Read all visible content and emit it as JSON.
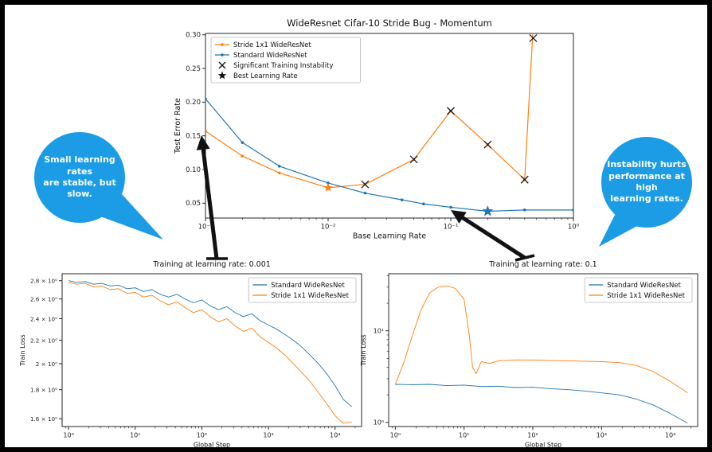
{
  "colors": {
    "orange": "#ff7f0e",
    "blue": "#1f77b4",
    "bubble_blue": "#1b9ce4",
    "annotation_black": "#111111"
  },
  "bubbles": {
    "left": {
      "text": "Small learning rates\nare stable, but slow."
    },
    "right": {
      "text": "Instability hurts\nperformance at high\nlearning rates."
    }
  },
  "chart_data": [
    {
      "type": "line",
      "title": "WideResnet Cifar-10 Stride Bug - Momentum",
      "xlabel": "Base Learning Rate",
      "ylabel": "Test Error Rate",
      "xscale": "log",
      "yscale": "linear",
      "xlim": [
        0.001,
        1.0
      ],
      "ylim": [
        0.028,
        0.302
      ],
      "grid": false,
      "xticks": [
        {
          "v": 0.001,
          "label": "10⁻³"
        },
        {
          "v": 0.01,
          "label": "10⁻²"
        },
        {
          "v": 0.1,
          "label": "10⁻¹"
        },
        {
          "v": 1,
          "label": "10⁰"
        }
      ],
      "yticks": [
        {
          "v": 0.05,
          "label": "0.05"
        },
        {
          "v": 0.1,
          "label": "0.10"
        },
        {
          "v": 0.15,
          "label": "0.15"
        },
        {
          "v": 0.2,
          "label": "0.20"
        },
        {
          "v": 0.25,
          "label": "0.25"
        },
        {
          "v": 0.3,
          "label": "0.30"
        }
      ],
      "legend": {
        "loc": "upper-left",
        "entries": [
          {
            "marker": "line-dot",
            "color": "#ff7f0e",
            "label": "Stride 1x1 WideResNet"
          },
          {
            "marker": "line-dot",
            "color": "#1f77b4",
            "label": "Standard WideResNet"
          },
          {
            "marker": "x",
            "color": "#111111",
            "label": "Significant Training Instability"
          },
          {
            "marker": "star",
            "color": "#111111",
            "label": "Best Learning Rate"
          }
        ]
      },
      "series": [
        {
          "name": "Stride 1x1 WideResNet",
          "color": "#ff7f0e",
          "marker": "dot",
          "x": [
            0.001,
            0.002,
            0.004,
            0.01,
            0.02,
            0.05,
            0.1,
            0.2,
            0.4,
            0.5
          ],
          "y": [
            0.157,
            0.12,
            0.095,
            0.073,
            0.078,
            0.115,
            0.187,
            0.137,
            0.085,
            0.4
          ]
        },
        {
          "name": "Standard WideResNet",
          "color": "#1f77b4",
          "marker": "dot",
          "x": [
            0.001,
            0.002,
            0.004,
            0.01,
            0.02,
            0.04,
            0.06,
            0.1,
            0.2,
            0.4,
            1.0
          ],
          "y": [
            0.205,
            0.14,
            0.105,
            0.08,
            0.065,
            0.055,
            0.049,
            0.044,
            0.038,
            0.04,
            0.04
          ]
        }
      ],
      "annotations": [
        {
          "marker": "x",
          "color": "#1a1a1a",
          "size": 4.5,
          "points": [
            [
              0.02,
              0.078
            ],
            [
              0.05,
              0.115
            ],
            [
              0.1,
              0.187
            ],
            [
              0.2,
              0.137
            ],
            [
              0.4,
              0.085
            ],
            [
              0.47,
              0.295
            ]
          ]
        },
        {
          "marker": "star",
          "color": "#ff7f0e",
          "size": 6,
          "points": [
            [
              0.01,
              0.073
            ]
          ]
        },
        {
          "marker": "star",
          "color": "#1f77b4",
          "size": 7.5,
          "points": [
            [
              0.2,
              0.038
            ]
          ]
        }
      ]
    },
    {
      "type": "line",
      "title": "Training at learning rate: 0.001",
      "xlabel": "Global Step",
      "ylabel": "Train Loss",
      "xscale": "log",
      "yscale": "log",
      "xlim": [
        0.8,
        25000
      ],
      "ylim": [
        1.55,
        2.88
      ],
      "grid": false,
      "xticks": [
        {
          "v": 1,
          "label": "10⁰"
        },
        {
          "v": 10,
          "label": "10¹"
        },
        {
          "v": 100,
          "label": "10²"
        },
        {
          "v": 1000,
          "label": "10³"
        },
        {
          "v": 10000,
          "label": "10⁴"
        }
      ],
      "yticks": [
        {
          "v": 1.6,
          "label": "1.6 × 10⁰"
        },
        {
          "v": 1.8,
          "label": "1.8 × 10⁰"
        },
        {
          "v": 2.0,
          "label": "2 × 10⁰"
        },
        {
          "v": 2.2,
          "label": "2.2 × 10⁰"
        },
        {
          "v": 2.4,
          "label": "2.4 × 10⁰"
        },
        {
          "v": 2.6,
          "label": "2.6 × 10⁰"
        },
        {
          "v": 2.8,
          "label": "2.8 × 10⁰"
        }
      ],
      "legend": {
        "loc": "upper-right",
        "entries": [
          {
            "marker": "line",
            "color": "#1f77b4",
            "label": "Standard WideResNet"
          },
          {
            "marker": "line",
            "color": "#ff7f0e",
            "label": "Stride 1x1 WideResNet"
          }
        ]
      },
      "series": [
        {
          "name": "Standard WideResNet",
          "color": "#1f77b4",
          "marker": "none",
          "x": [
            1,
            1.33,
            1.78,
            2.37,
            3.16,
            4.22,
            5.62,
            7.5,
            10,
            13.3,
            17.8,
            23.7,
            31.6,
            42.2,
            56.2,
            75,
            100,
            133,
            178,
            237,
            316,
            422,
            562,
            750,
            1000,
            1330,
            1780,
            2370,
            3160,
            4220,
            5620,
            7500,
            10000,
            13300,
            17800
          ],
          "y": [
            2.8,
            2.78,
            2.79,
            2.76,
            2.77,
            2.74,
            2.75,
            2.71,
            2.72,
            2.68,
            2.7,
            2.65,
            2.62,
            2.65,
            2.6,
            2.56,
            2.59,
            2.53,
            2.49,
            2.52,
            2.46,
            2.42,
            2.45,
            2.38,
            2.34,
            2.3,
            2.25,
            2.2,
            2.14,
            2.07,
            2.0,
            1.92,
            1.83,
            1.73,
            1.68
          ]
        },
        {
          "name": "Stride 1x1 WideResNet",
          "color": "#ff7f0e",
          "marker": "none",
          "x": [
            1,
            1.33,
            1.78,
            2.37,
            3.16,
            4.22,
            5.62,
            7.5,
            10,
            13.3,
            17.8,
            23.7,
            31.6,
            42.2,
            56.2,
            75,
            100,
            133,
            178,
            237,
            316,
            422,
            562,
            750,
            1000,
            1330,
            1780,
            2370,
            3160,
            4220,
            5620,
            7500,
            10000,
            13300,
            17800
          ],
          "y": [
            2.78,
            2.76,
            2.77,
            2.73,
            2.74,
            2.7,
            2.71,
            2.66,
            2.67,
            2.62,
            2.64,
            2.58,
            2.54,
            2.57,
            2.51,
            2.46,
            2.49,
            2.42,
            2.37,
            2.4,
            2.33,
            2.28,
            2.31,
            2.23,
            2.18,
            2.13,
            2.07,
            2.0,
            1.93,
            1.86,
            1.78,
            1.7,
            1.62,
            1.57,
            1.58
          ]
        }
      ],
      "annotations": []
    },
    {
      "type": "line",
      "title": "Training at learning rate: 0.1",
      "xlabel": "Global Step",
      "ylabel": "Train Loss",
      "xscale": "log",
      "yscale": "log",
      "xlim": [
        0.8,
        25000
      ],
      "ylim": [
        0.9,
        42
      ],
      "grid": false,
      "xticks": [
        {
          "v": 1,
          "label": "10⁰"
        },
        {
          "v": 10,
          "label": "10¹"
        },
        {
          "v": 100,
          "label": "10²"
        },
        {
          "v": 1000,
          "label": "10³"
        },
        {
          "v": 10000,
          "label": "10⁴"
        }
      ],
      "yticks": [
        {
          "v": 1,
          "label": "10⁰"
        },
        {
          "v": 10,
          "label": "10¹"
        }
      ],
      "legend": {
        "loc": "upper-right",
        "entries": [
          {
            "marker": "line",
            "color": "#1f77b4",
            "label": "Standard WideResNet"
          },
          {
            "marker": "line",
            "color": "#ff7f0e",
            "label": "Stride 1x1 WideResNet"
          }
        ]
      },
      "series": [
        {
          "name": "Stride 1x1 WideResNet",
          "color": "#ff7f0e",
          "marker": "none",
          "x": [
            1,
            1.33,
            1.78,
            2.37,
            3.16,
            4.22,
            5.62,
            7.5,
            10,
            11.9,
            13.3,
            15,
            17.8,
            23.7,
            31.6,
            56.2,
            100,
            178,
            316,
            562,
            1000,
            1780,
            3160,
            5620,
            10000,
            17800
          ],
          "y": [
            2.6,
            4.5,
            9,
            17,
            26,
            30,
            31,
            29,
            22,
            9,
            4.0,
            3.4,
            4.6,
            4.4,
            4.7,
            4.8,
            4.8,
            4.75,
            4.7,
            4.65,
            4.6,
            4.5,
            4.2,
            3.6,
            2.8,
            2.1
          ]
        },
        {
          "name": "Standard WideResNet",
          "color": "#1f77b4",
          "marker": "none",
          "x": [
            1,
            1.78,
            3.16,
            5.62,
            10,
            17.8,
            31.6,
            56.2,
            100,
            178,
            316,
            562,
            1000,
            1780,
            3160,
            5620,
            10000,
            17800
          ],
          "y": [
            2.6,
            2.58,
            2.6,
            2.52,
            2.55,
            2.46,
            2.48,
            2.4,
            2.42,
            2.33,
            2.28,
            2.2,
            2.1,
            2.0,
            1.8,
            1.55,
            1.25,
            0.98
          ]
        }
      ],
      "annotations": []
    }
  ]
}
